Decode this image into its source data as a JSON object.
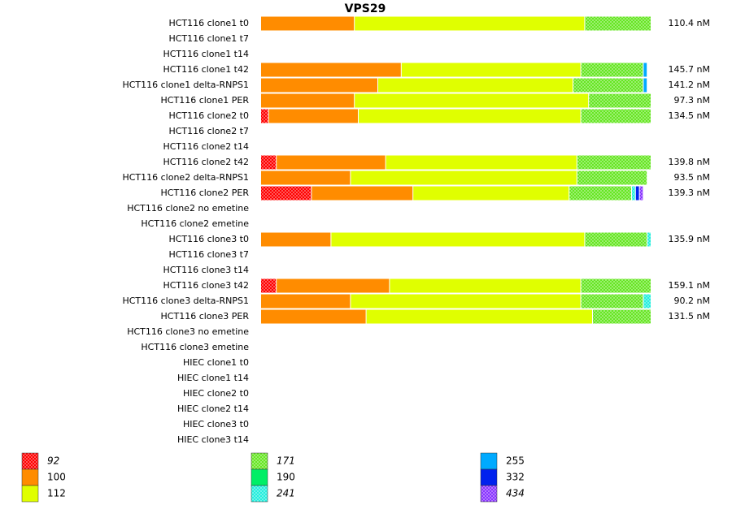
{
  "chart_data": {
    "type": "stacked-bar-horizontal",
    "title": "VPS29",
    "categories": [
      "HCT116 clone1 t0",
      "HCT116 clone1 t7",
      "HCT116 clone1 t14",
      "HCT116 clone1 t42",
      "HCT116 clone1 delta-RNPS1",
      "HCT116 clone1 PER",
      "HCT116 clone2 t0",
      "HCT116 clone2 t7",
      "HCT116 clone2 t14",
      "HCT116 clone2 t42",
      "HCT116 clone2 delta-RNPS1",
      "HCT116 clone2 PER",
      "HCT116 clone2 no emetine",
      "HCT116 clone2 emetine",
      "HCT116 clone3 t0",
      "HCT116 clone3 t7",
      "HCT116 clone3 t14",
      "HCT116 clone3 t42",
      "HCT116 clone3 delta-RNPS1",
      "HCT116 clone3 PER",
      "HCT116 clone3 no emetine",
      "HCT116 clone3 emetine",
      "HIEC clone1 t0",
      "HIEC clone1 t14",
      "HIEC clone2 t0",
      "HIEC clone2 t14",
      "HIEC clone3 t0",
      "HIEC clone3 t14"
    ],
    "xlim": [
      0,
      100
    ],
    "series": [
      {
        "name": "92",
        "color": "#ff0000",
        "pattern": "checkered",
        "italic": true,
        "values": [
          null,
          null,
          null,
          null,
          null,
          null,
          2,
          null,
          null,
          4,
          null,
          13,
          null,
          null,
          null,
          null,
          null,
          4,
          null,
          null,
          null,
          null,
          null,
          null,
          null,
          null,
          null,
          null
        ]
      },
      {
        "name": "100",
        "color": "#ff8c00",
        "pattern": "solid",
        "italic": false,
        "values": [
          24,
          null,
          null,
          36,
          30,
          24,
          23,
          null,
          null,
          28,
          23,
          26,
          null,
          null,
          18,
          null,
          null,
          29,
          23,
          27,
          null,
          null,
          null,
          null,
          null,
          null,
          null,
          null
        ]
      },
      {
        "name": "112",
        "color": "#e0ff00",
        "pattern": "solid",
        "italic": false,
        "values": [
          59,
          null,
          null,
          46,
          50,
          60,
          57,
          null,
          null,
          49,
          58,
          40,
          null,
          null,
          65,
          null,
          null,
          49,
          59,
          58,
          null,
          null,
          null,
          null,
          null,
          null,
          null,
          null
        ]
      },
      {
        "name": "171",
        "color": "#66e622",
        "pattern": "checkered",
        "italic": true,
        "values": [
          17,
          null,
          null,
          16,
          18,
          16,
          18,
          null,
          null,
          19,
          18,
          16,
          null,
          null,
          16,
          null,
          null,
          18,
          16,
          15,
          null,
          null,
          null,
          null,
          null,
          null,
          null,
          null
        ]
      },
      {
        "name": "190",
        "color": "#00ee66",
        "pattern": "solid",
        "italic": false,
        "values": [
          null,
          null,
          null,
          null,
          null,
          null,
          null,
          null,
          null,
          null,
          null,
          null,
          null,
          null,
          null,
          null,
          null,
          null,
          null,
          null,
          null,
          null,
          null,
          null,
          null,
          null,
          null,
          null
        ]
      },
      {
        "name": "241",
        "color": "#22eedd",
        "pattern": "checkered",
        "italic": true,
        "values": [
          null,
          null,
          null,
          null,
          null,
          null,
          null,
          null,
          null,
          null,
          null,
          1,
          null,
          null,
          1,
          null,
          null,
          null,
          2,
          null,
          null,
          null,
          null,
          null,
          null,
          null,
          null,
          null
        ]
      },
      {
        "name": "255",
        "color": "#00aaff",
        "pattern": "solid",
        "italic": false,
        "values": [
          null,
          null,
          null,
          1,
          1,
          null,
          null,
          null,
          null,
          null,
          null,
          null,
          null,
          null,
          null,
          null,
          null,
          null,
          null,
          null,
          null,
          null,
          null,
          null,
          null,
          null,
          null,
          null
        ]
      },
      {
        "name": "332",
        "color": "#0022ee",
        "pattern": "solid",
        "italic": false,
        "values": [
          null,
          null,
          null,
          null,
          null,
          null,
          null,
          null,
          null,
          null,
          null,
          1,
          null,
          null,
          null,
          null,
          null,
          null,
          null,
          null,
          null,
          null,
          null,
          null,
          null,
          null,
          null,
          null
        ]
      },
      {
        "name": "434",
        "color": "#8833ff",
        "pattern": "checkered",
        "italic": true,
        "values": [
          null,
          null,
          null,
          null,
          null,
          null,
          null,
          null,
          null,
          null,
          null,
          1,
          null,
          null,
          null,
          null,
          null,
          null,
          null,
          null,
          null,
          null,
          null,
          null,
          null,
          null,
          null,
          null
        ]
      }
    ],
    "totals": {
      "values": [
        110.4,
        null,
        null,
        145.7,
        141.2,
        97.3,
        134.5,
        null,
        null,
        139.8,
        93.5,
        139.3,
        null,
        null,
        135.9,
        null,
        null,
        159.1,
        90.2,
        131.5,
        null,
        null,
        null,
        null,
        null,
        null,
        null,
        null
      ],
      "value_labels": [
        "110.4 nM",
        null,
        null,
        "145.7 nM",
        "141.2 nM",
        "97.3 nM",
        "134.5 nM",
        null,
        null,
        "139.8 nM",
        "93.5 nM",
        "139.3 nM",
        null,
        null,
        "135.9 nM",
        null,
        null,
        "159.1 nM",
        "90.2 nM",
        "131.5 nM",
        null,
        null,
        null,
        null,
        null,
        null,
        null,
        null
      ]
    }
  }
}
